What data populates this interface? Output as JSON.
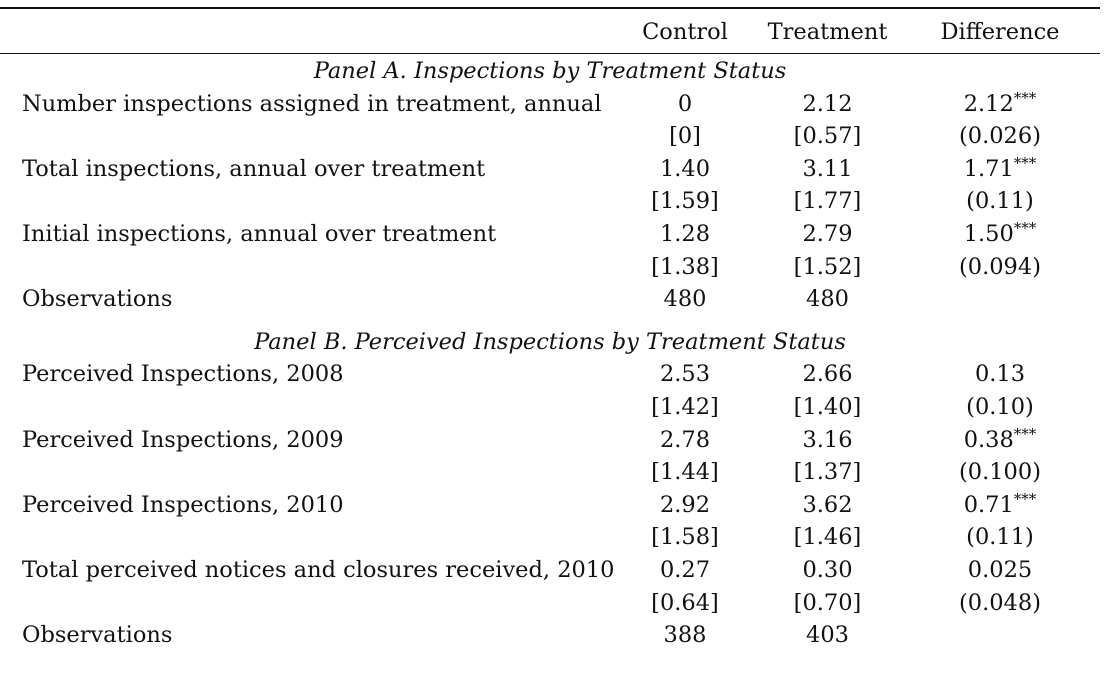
{
  "header": {
    "col_label": "",
    "col_control": "Control",
    "col_treatment": "Treatment",
    "col_difference": "Difference"
  },
  "panel_a": {
    "title": "Panel A. Inspections by Treatment Status",
    "rows": [
      {
        "label": "Number inspections assigned in treatment, annual",
        "control": "0",
        "treatment": "2.12",
        "difference": "2.12",
        "stars": "***",
        "control_sd": "[0]",
        "treatment_sd": "[0.57]",
        "difference_se": "(0.026)"
      },
      {
        "label": "Total inspections, annual over treatment",
        "control": "1.40",
        "treatment": "3.11",
        "difference": "1.71",
        "stars": "***",
        "control_sd": "[1.59]",
        "treatment_sd": "[1.77]",
        "difference_se": "(0.11)"
      },
      {
        "label": "Initial inspections, annual over treatment",
        "control": "1.28",
        "treatment": "2.79",
        "difference": "1.50",
        "stars": "***",
        "control_sd": "[1.38]",
        "treatment_sd": "[1.52]",
        "difference_se": "(0.094)"
      }
    ],
    "observations": {
      "label": "Observations",
      "control": "480",
      "treatment": "480"
    }
  },
  "panel_b": {
    "title": "Panel B. Perceived Inspections by Treatment Status",
    "rows": [
      {
        "label": "Perceived Inspections, 2008",
        "control": "2.53",
        "treatment": "2.66",
        "difference": "0.13",
        "stars": "",
        "control_sd": "[1.42]",
        "treatment_sd": "[1.40]",
        "difference_se": "(0.10)"
      },
      {
        "label": "Perceived Inspections, 2009",
        "control": "2.78",
        "treatment": "3.16",
        "difference": "0.38",
        "stars": "***",
        "control_sd": "[1.44]",
        "treatment_sd": "[1.37]",
        "difference_se": "(0.100)"
      },
      {
        "label": "Perceived Inspections, 2010",
        "control": "2.92",
        "treatment": "3.62",
        "difference": "0.71",
        "stars": "***",
        "control_sd": "[1.58]",
        "treatment_sd": "[1.46]",
        "difference_se": "(0.11)"
      },
      {
        "label": "Total perceived notices and closures received, 2010",
        "control": "0.27",
        "treatment": "0.30",
        "difference": "0.025",
        "stars": "",
        "control_sd": "[0.64]",
        "treatment_sd": "[0.70]",
        "difference_se": "(0.048)"
      }
    ],
    "observations": {
      "label": "Observations",
      "control": "388",
      "treatment": "403"
    }
  }
}
